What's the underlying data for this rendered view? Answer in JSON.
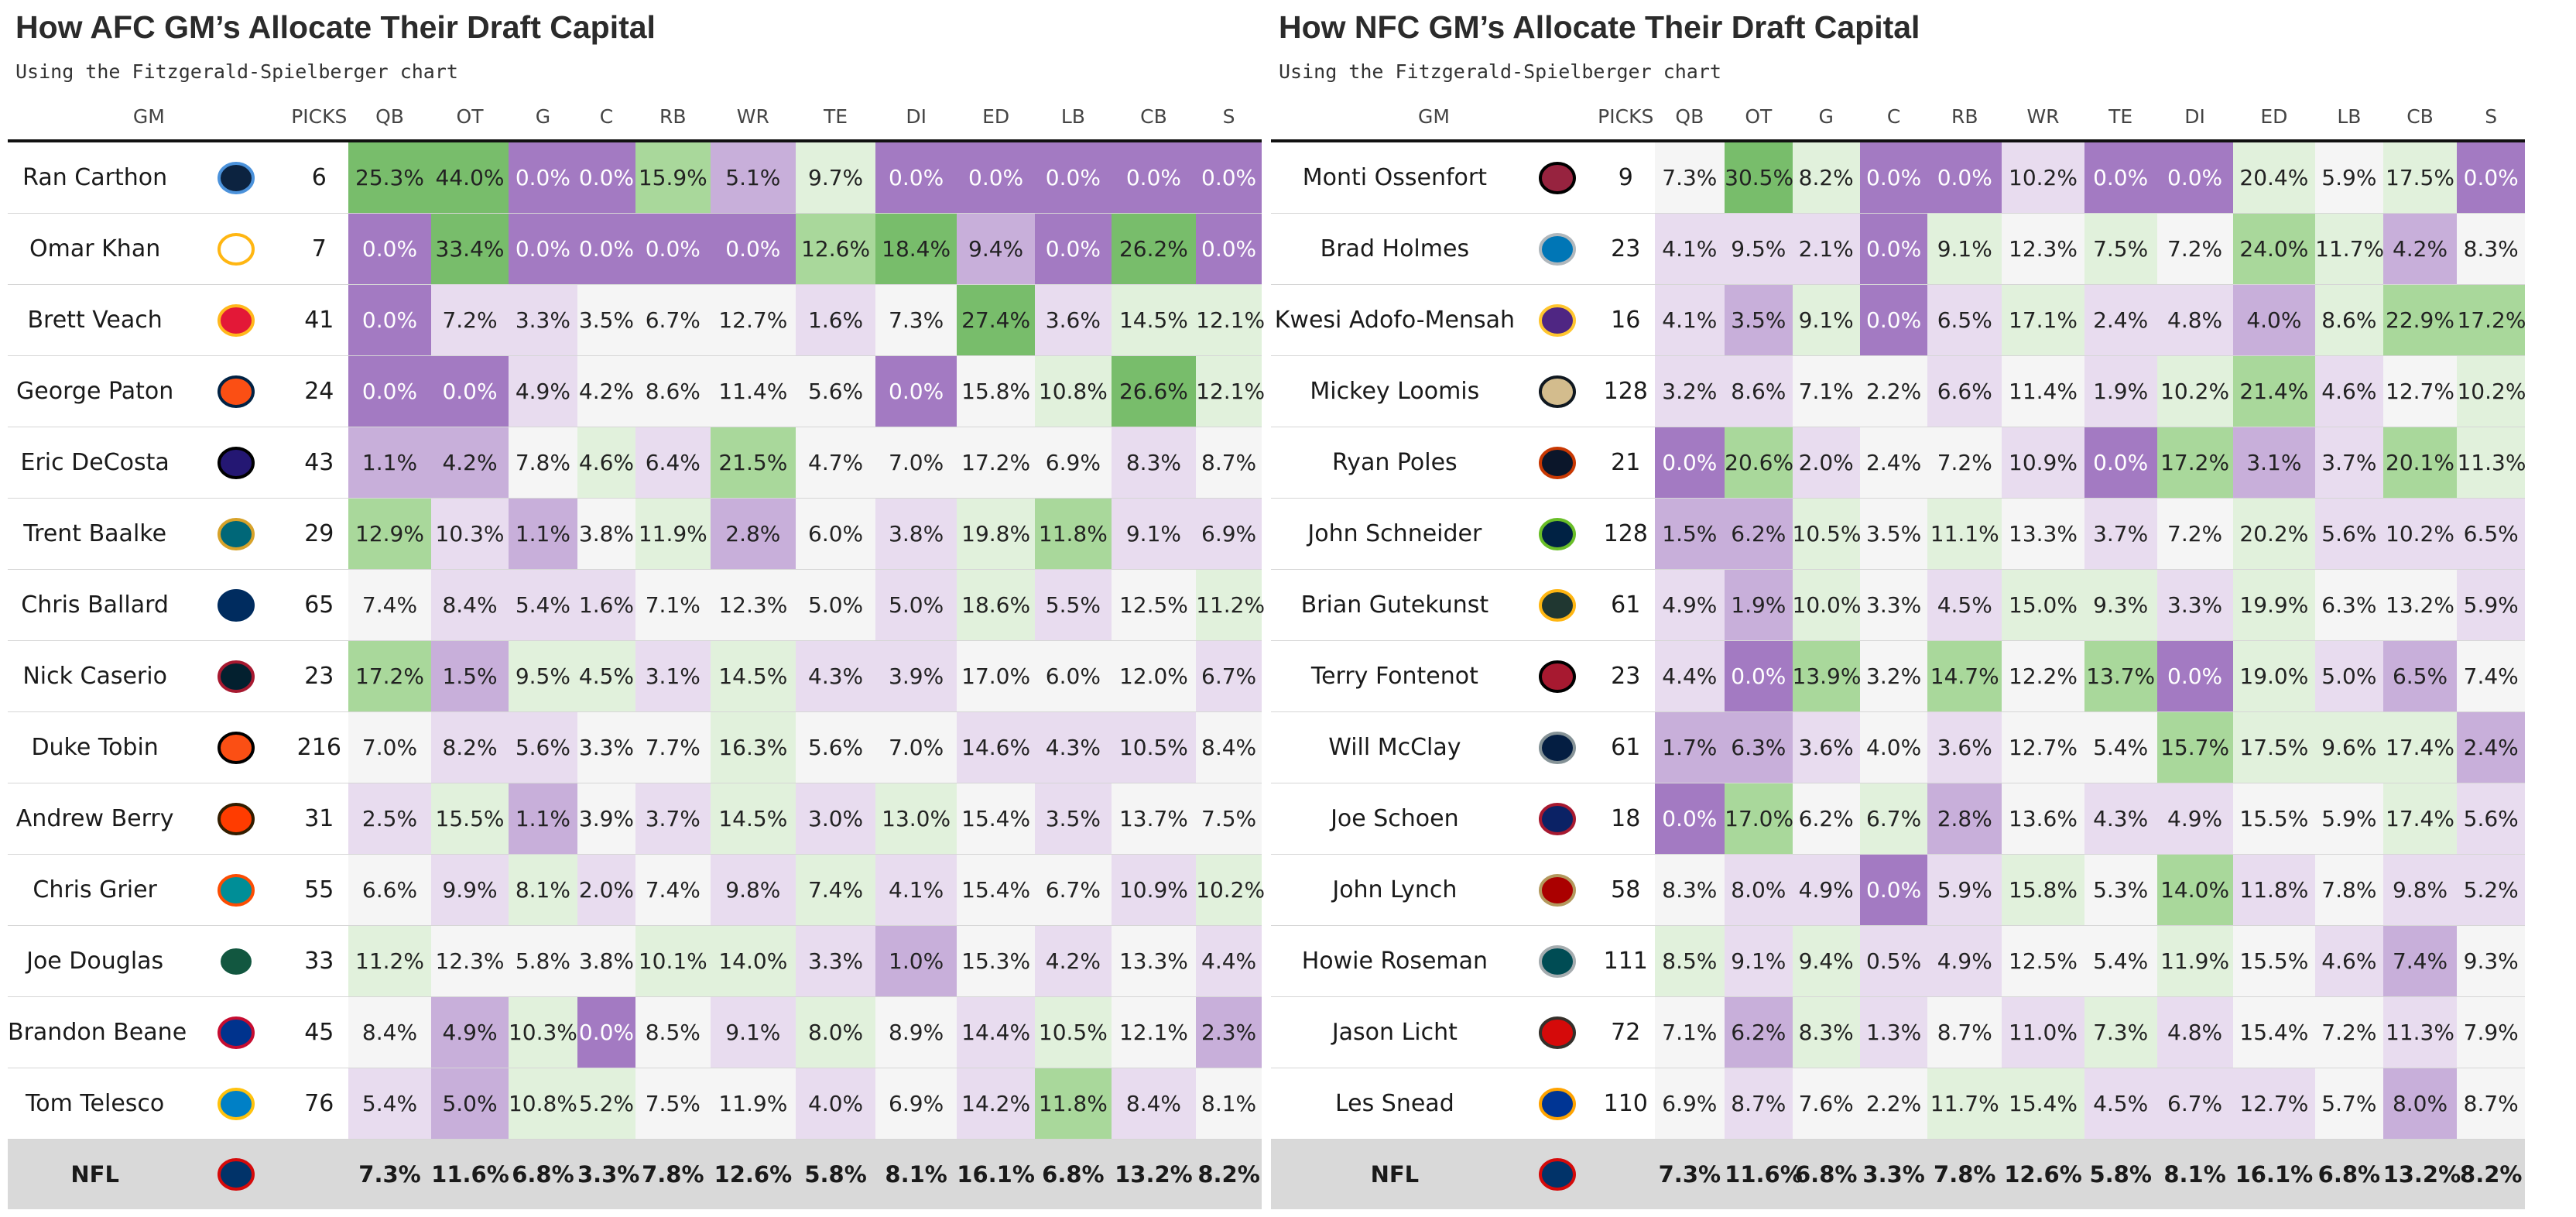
{
  "columns": [
    "GM",
    "PICKS",
    "QB",
    "OT",
    "G",
    "C",
    "RB",
    "WR",
    "TE",
    "DI",
    "ED",
    "LB",
    "CB",
    "S"
  ],
  "afc": {
    "title": "How AFC GM’s Allocate Their Draft Capital",
    "subtitle": "Using the Fitzgerald-Spielberger chart",
    "rows": [
      {
        "gm": "Ran Carthon",
        "team": "titans-logo",
        "picks": "6",
        "values": [
          "25.3%",
          "44.0%",
          "0.0%",
          "0.0%",
          "15.9%",
          "5.1%",
          "9.7%",
          "0.0%",
          "0.0%",
          "0.0%",
          "0.0%",
          "0.0%"
        ]
      },
      {
        "gm": "Omar Khan",
        "team": "steelers-logo",
        "picks": "7",
        "values": [
          "0.0%",
          "33.4%",
          "0.0%",
          "0.0%",
          "0.0%",
          "0.0%",
          "12.6%",
          "18.4%",
          "9.4%",
          "0.0%",
          "26.2%",
          "0.0%"
        ]
      },
      {
        "gm": "Brett Veach",
        "team": "chiefs-logo",
        "picks": "41",
        "values": [
          "0.0%",
          "7.2%",
          "3.3%",
          "3.5%",
          "6.7%",
          "12.7%",
          "1.6%",
          "7.3%",
          "27.4%",
          "3.6%",
          "14.5%",
          "12.1%"
        ]
      },
      {
        "gm": "George Paton",
        "team": "broncos-logo",
        "picks": "24",
        "values": [
          "0.0%",
          "0.0%",
          "4.9%",
          "4.2%",
          "8.6%",
          "11.4%",
          "5.6%",
          "0.0%",
          "15.8%",
          "10.8%",
          "26.6%",
          "12.1%"
        ]
      },
      {
        "gm": "Eric DeCosta",
        "team": "ravens-logo",
        "picks": "43",
        "values": [
          "1.1%",
          "4.2%",
          "7.8%",
          "4.6%",
          "6.4%",
          "21.5%",
          "4.7%",
          "7.0%",
          "17.2%",
          "6.9%",
          "8.3%",
          "8.7%"
        ]
      },
      {
        "gm": "Trent Baalke",
        "team": "jaguars-logo",
        "picks": "29",
        "values": [
          "12.9%",
          "10.3%",
          "1.1%",
          "3.8%",
          "11.9%",
          "2.8%",
          "6.0%",
          "3.8%",
          "19.8%",
          "11.8%",
          "9.1%",
          "6.9%"
        ]
      },
      {
        "gm": "Chris Ballard",
        "team": "colts-logo",
        "picks": "65",
        "values": [
          "7.4%",
          "8.4%",
          "5.4%",
          "1.6%",
          "7.1%",
          "12.3%",
          "5.0%",
          "5.0%",
          "18.6%",
          "5.5%",
          "12.5%",
          "11.2%"
        ]
      },
      {
        "gm": "Nick Caserio",
        "team": "texans-logo",
        "picks": "23",
        "values": [
          "17.2%",
          "1.5%",
          "9.5%",
          "4.5%",
          "3.1%",
          "14.5%",
          "4.3%",
          "3.9%",
          "17.0%",
          "6.0%",
          "12.0%",
          "6.7%"
        ]
      },
      {
        "gm": "Duke Tobin",
        "team": "bengals-logo",
        "picks": "216",
        "values": [
          "7.0%",
          "8.2%",
          "5.6%",
          "3.3%",
          "7.7%",
          "16.3%",
          "5.6%",
          "7.0%",
          "14.6%",
          "4.3%",
          "10.5%",
          "8.4%"
        ]
      },
      {
        "gm": "Andrew Berry",
        "team": "browns-logo",
        "picks": "31",
        "values": [
          "2.5%",
          "15.5%",
          "1.1%",
          "3.9%",
          "3.7%",
          "14.5%",
          "3.0%",
          "13.0%",
          "15.4%",
          "3.5%",
          "13.7%",
          "7.5%"
        ]
      },
      {
        "gm": "Chris Grier",
        "team": "dolphins-logo",
        "picks": "55",
        "values": [
          "6.6%",
          "9.9%",
          "8.1%",
          "2.0%",
          "7.4%",
          "9.8%",
          "7.4%",
          "4.1%",
          "15.4%",
          "6.7%",
          "10.9%",
          "10.2%"
        ]
      },
      {
        "gm": "Joe Douglas",
        "team": "jets-logo",
        "picks": "33",
        "values": [
          "11.2%",
          "12.3%",
          "5.8%",
          "3.8%",
          "10.1%",
          "14.0%",
          "3.3%",
          "1.0%",
          "15.3%",
          "4.2%",
          "13.3%",
          "4.4%"
        ]
      },
      {
        "gm": "Brandon Beane",
        "team": "bills-logo",
        "picks": "45",
        "values": [
          "8.4%",
          "4.9%",
          "10.3%",
          "0.0%",
          "8.5%",
          "9.1%",
          "8.0%",
          "8.9%",
          "14.4%",
          "10.5%",
          "12.1%",
          "2.3%"
        ]
      },
      {
        "gm": "Tom Telesco",
        "team": "chargers-logo",
        "picks": "76",
        "values": [
          "5.4%",
          "5.0%",
          "10.8%",
          "5.2%",
          "7.5%",
          "11.9%",
          "4.0%",
          "6.9%",
          "14.2%",
          "11.8%",
          "8.4%",
          "8.1%"
        ]
      }
    ],
    "nfl": {
      "label": "NFL",
      "values": [
        "7.3%",
        "11.6%",
        "6.8%",
        "3.3%",
        "7.8%",
        "12.6%",
        "5.8%",
        "8.1%",
        "16.1%",
        "6.8%",
        "13.2%",
        "8.2%"
      ]
    }
  },
  "nfc": {
    "title": "How NFC GM’s Allocate Their Draft Capital",
    "subtitle": "Using the Fitzgerald-Spielberger chart",
    "rows": [
      {
        "gm": "Monti Ossenfort",
        "team": "cardinals-logo",
        "picks": "9",
        "values": [
          "7.3%",
          "30.5%",
          "8.2%",
          "0.0%",
          "0.0%",
          "10.2%",
          "0.0%",
          "0.0%",
          "20.4%",
          "5.9%",
          "17.5%",
          "0.0%"
        ]
      },
      {
        "gm": "Brad Holmes",
        "team": "lions-logo",
        "picks": "23",
        "values": [
          "4.1%",
          "9.5%",
          "2.1%",
          "0.0%",
          "9.1%",
          "12.3%",
          "7.5%",
          "7.2%",
          "24.0%",
          "11.7%",
          "4.2%",
          "8.3%"
        ]
      },
      {
        "gm": "Kwesi Adofo-Mensah",
        "team": "vikings-logo",
        "picks": "16",
        "values": [
          "4.1%",
          "3.5%",
          "9.1%",
          "0.0%",
          "6.5%",
          "17.1%",
          "2.4%",
          "4.8%",
          "4.0%",
          "8.6%",
          "22.9%",
          "17.2%"
        ]
      },
      {
        "gm": "Mickey Loomis",
        "team": "saints-logo",
        "picks": "128",
        "values": [
          "3.2%",
          "8.6%",
          "7.1%",
          "2.2%",
          "6.6%",
          "11.4%",
          "1.9%",
          "10.2%",
          "21.4%",
          "4.6%",
          "12.7%",
          "10.2%"
        ]
      },
      {
        "gm": "Ryan Poles",
        "team": "bears-logo",
        "picks": "21",
        "values": [
          "0.0%",
          "20.6%",
          "2.0%",
          "2.4%",
          "7.2%",
          "10.9%",
          "0.0%",
          "17.2%",
          "3.1%",
          "3.7%",
          "20.1%",
          "11.3%"
        ]
      },
      {
        "gm": "John Schneider",
        "team": "seahawks-logo",
        "picks": "128",
        "values": [
          "1.5%",
          "6.2%",
          "10.5%",
          "3.5%",
          "11.1%",
          "13.3%",
          "3.7%",
          "7.2%",
          "20.2%",
          "5.6%",
          "10.2%",
          "6.5%"
        ]
      },
      {
        "gm": "Brian Gutekunst",
        "team": "packers-logo",
        "picks": "61",
        "values": [
          "4.9%",
          "1.9%",
          "10.0%",
          "3.3%",
          "4.5%",
          "15.0%",
          "9.3%",
          "3.3%",
          "19.9%",
          "6.3%",
          "13.2%",
          "5.9%"
        ]
      },
      {
        "gm": "Terry Fontenot",
        "team": "falcons-logo",
        "picks": "23",
        "values": [
          "4.4%",
          "0.0%",
          "13.9%",
          "3.2%",
          "14.7%",
          "12.2%",
          "13.7%",
          "0.0%",
          "19.0%",
          "5.0%",
          "6.5%",
          "7.4%"
        ]
      },
      {
        "gm": "Will McClay",
        "team": "cowboys-logo",
        "picks": "61",
        "values": [
          "1.7%",
          "6.3%",
          "3.6%",
          "4.0%",
          "3.6%",
          "12.7%",
          "5.4%",
          "15.7%",
          "17.5%",
          "9.6%",
          "17.4%",
          "2.4%"
        ]
      },
      {
        "gm": "Joe Schoen",
        "team": "giants-logo",
        "picks": "18",
        "values": [
          "0.0%",
          "17.0%",
          "6.2%",
          "6.7%",
          "2.8%",
          "13.6%",
          "4.3%",
          "4.9%",
          "15.5%",
          "5.9%",
          "17.4%",
          "5.6%"
        ]
      },
      {
        "gm": "John Lynch",
        "team": "49ers-logo",
        "picks": "58",
        "values": [
          "8.3%",
          "8.0%",
          "4.9%",
          "0.0%",
          "5.9%",
          "15.8%",
          "5.3%",
          "14.0%",
          "11.8%",
          "7.8%",
          "9.8%",
          "5.2%"
        ]
      },
      {
        "gm": "Howie Roseman",
        "team": "eagles-logo",
        "picks": "111",
        "values": [
          "8.5%",
          "9.1%",
          "9.4%",
          "0.5%",
          "4.9%",
          "12.5%",
          "5.4%",
          "11.9%",
          "15.5%",
          "4.6%",
          "7.4%",
          "9.3%"
        ]
      },
      {
        "gm": "Jason Licht",
        "team": "buccaneers-logo",
        "picks": "72",
        "values": [
          "7.1%",
          "6.2%",
          "8.3%",
          "1.3%",
          "8.7%",
          "11.0%",
          "7.3%",
          "4.8%",
          "15.4%",
          "7.2%",
          "11.3%",
          "7.9%"
        ]
      },
      {
        "gm": "Les Snead",
        "team": "rams-logo",
        "picks": "110",
        "values": [
          "6.9%",
          "8.7%",
          "7.6%",
          "2.2%",
          "11.7%",
          "15.4%",
          "4.5%",
          "6.7%",
          "12.7%",
          "5.7%",
          "8.0%",
          "8.7%"
        ]
      }
    ],
    "nfl": {
      "label": "NFL",
      "values": [
        "7.3%",
        "11.6%",
        "6.8%",
        "3.3%",
        "7.8%",
        "12.6%",
        "5.8%",
        "8.1%",
        "16.1%",
        "6.8%",
        "13.2%",
        "8.2%"
      ]
    }
  },
  "colors": {
    "very_low": "#a37ac2",
    "low": "#c8afda",
    "slightly_low": "#e8dcef",
    "neutral": "#f5f5f5",
    "slightly_high": "#e1f1dc",
    "high": "#a9d89b",
    "very_high": "#78bd6b",
    "nfl_row_bg": "#d9d9d9"
  },
  "team_colors": {
    "titans-logo": [
      "#0c2340",
      "#4b92db"
    ],
    "steelers-logo": [
      "#ffffff",
      "#ffb612"
    ],
    "chiefs-logo": [
      "#e31837",
      "#ffb81c"
    ],
    "broncos-logo": [
      "#fb4f14",
      "#002244"
    ],
    "ravens-logo": [
      "#241773",
      "#000000"
    ],
    "jaguars-logo": [
      "#006778",
      "#d7a22a"
    ],
    "colts-logo": [
      "#002c5f",
      "#002c5f"
    ],
    "texans-logo": [
      "#03202f",
      "#a71930"
    ],
    "bengals-logo": [
      "#fb4f14",
      "#000000"
    ],
    "browns-logo": [
      "#ff3c00",
      "#311d00"
    ],
    "dolphins-logo": [
      "#008e97",
      "#fc4c02"
    ],
    "jets-logo": [
      "#125740",
      "#ffffff"
    ],
    "bills-logo": [
      "#00338d",
      "#c60c30"
    ],
    "chargers-logo": [
      "#0080c6",
      "#ffc20e"
    ],
    "cardinals-logo": [
      "#97233f",
      "#000000"
    ],
    "lions-logo": [
      "#0076b6",
      "#b0b7bc"
    ],
    "vikings-logo": [
      "#4f2683",
      "#ffc62f"
    ],
    "saints-logo": [
      "#d3bc8d",
      "#101820"
    ],
    "bears-logo": [
      "#0b162a",
      "#c83803"
    ],
    "seahawks-logo": [
      "#002244",
      "#69be28"
    ],
    "packers-logo": [
      "#203731",
      "#ffb612"
    ],
    "falcons-logo": [
      "#a71930",
      "#000000"
    ],
    "cowboys-logo": [
      "#041e42",
      "#869397"
    ],
    "giants-logo": [
      "#0b2265",
      "#a71930"
    ],
    "49ers-logo": [
      "#aa0000",
      "#b3995d"
    ],
    "eagles-logo": [
      "#004c54",
      "#a5acaf"
    ],
    "buccaneers-logo": [
      "#d50a0a",
      "#34302b"
    ],
    "rams-logo": [
      "#003594",
      "#ffa300"
    ],
    "nfl-logo": [
      "#013369",
      "#d50a0a"
    ]
  }
}
